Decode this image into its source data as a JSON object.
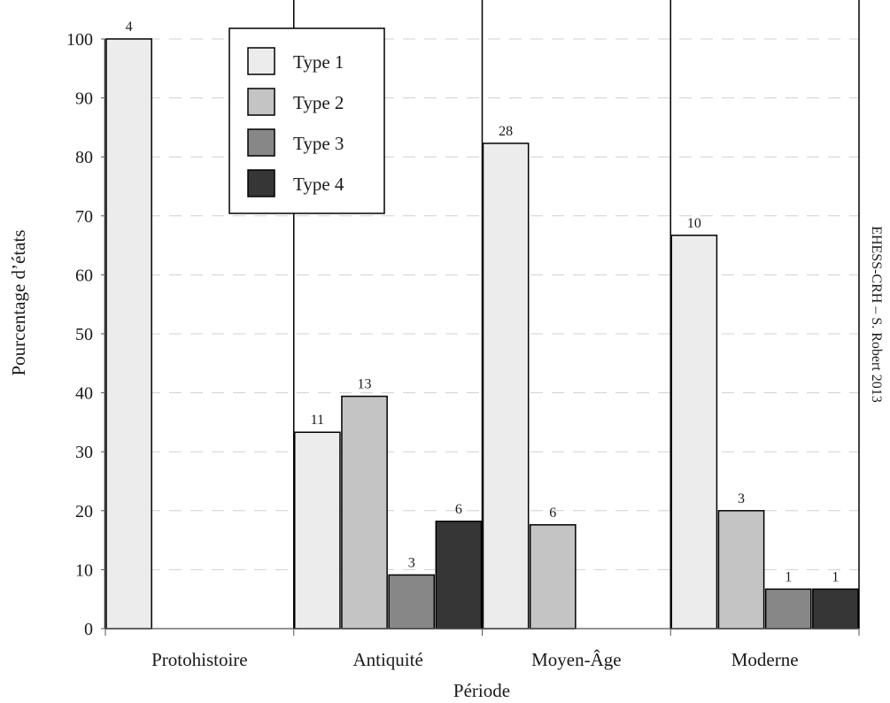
{
  "chart_data": {
    "type": "bar",
    "xlabel": "Période",
    "ylabel": "Pourcentage d’états",
    "ylim": [
      0,
      100
    ],
    "yticks": [
      0,
      10,
      20,
      30,
      40,
      50,
      60,
      70,
      80,
      90,
      100
    ],
    "grid": "horizontal dashed",
    "legend_position": "top-left",
    "categories": [
      "Protohistoire",
      "Antiquité",
      "Moyen-Âge",
      "Moderne"
    ],
    "series": [
      {
        "name": "Type 1",
        "color": "#ececec",
        "values": [
          100,
          33.3,
          82.3,
          66.7
        ],
        "labels": [
          "4",
          "11",
          "28",
          "10"
        ]
      },
      {
        "name": "Type 2",
        "color": "#c4c4c4",
        "values": [
          null,
          39.4,
          17.6,
          20.0
        ],
        "labels": [
          "",
          "13",
          "6",
          "3"
        ]
      },
      {
        "name": "Type 3",
        "color": "#878787",
        "values": [
          null,
          9.1,
          null,
          6.7
        ],
        "labels": [
          "",
          "3",
          "",
          "1"
        ]
      },
      {
        "name": "Type 4",
        "color": "#363636",
        "values": [
          null,
          18.2,
          null,
          6.7
        ],
        "labels": [
          "",
          "6",
          "",
          "1"
        ]
      }
    ],
    "credit": "EHESS-CRH – S. Robert 2013"
  }
}
